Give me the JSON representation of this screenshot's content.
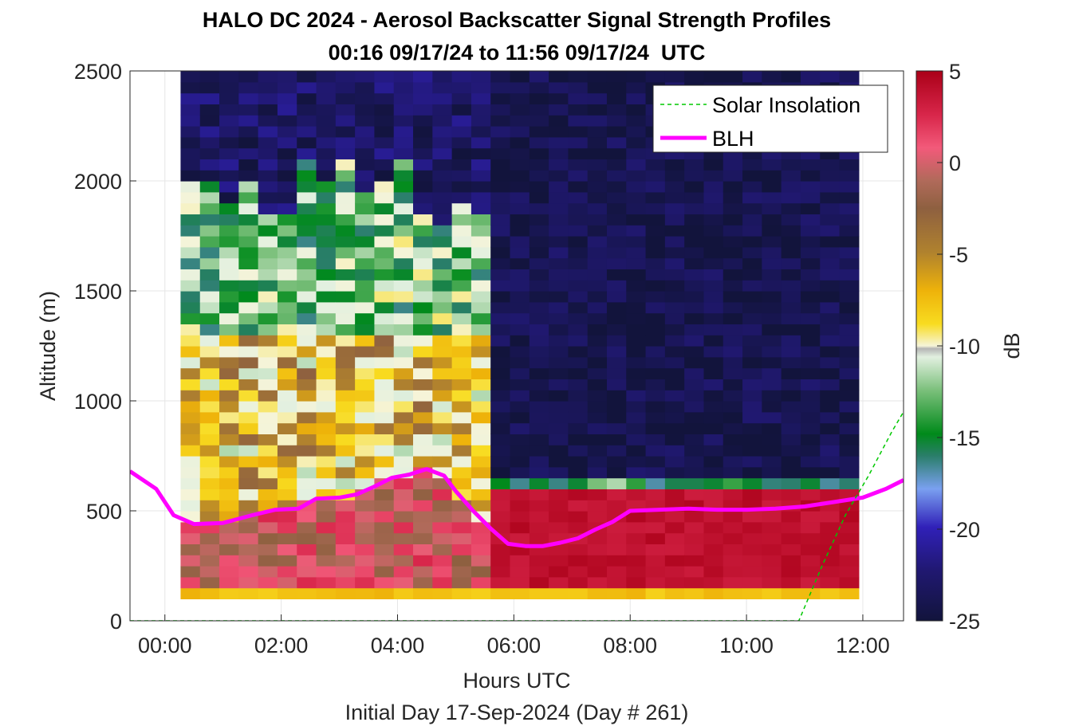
{
  "chart_data": {
    "type": "heatmap",
    "title": "HALO DC 2024 - Aerosol Backscatter Signal Strength Profiles",
    "subtitle": "00:16 09/17/24 to 11:56 09/17/24  UTC",
    "xlabel": "Hours UTC",
    "ylabel": "Altitude (m)",
    "footer": "Initial Day 17-Sep-2024 (Day # 261)",
    "xlim": [
      -0.6,
      12.7
    ],
    "ylim": [
      0,
      2500
    ],
    "x_ticks": [
      0,
      2,
      4,
      6,
      8,
      10,
      12
    ],
    "x_tick_labels": [
      "00:00",
      "02:00",
      "04:00",
      "06:00",
      "08:00",
      "10:00",
      "12:00"
    ],
    "y_ticks": [
      0,
      500,
      1000,
      1500,
      2000,
      2500
    ],
    "y_tick_labels": [
      "0",
      "500",
      "1000",
      "1500",
      "2000",
      "2500"
    ],
    "grid": true,
    "colorbar": {
      "label": "dB",
      "range": [
        -25,
        5
      ],
      "ticks": [
        5,
        0,
        -5,
        -10,
        -15,
        -20,
        -25
      ],
      "tick_labels": [
        "5",
        "0",
        "-5",
        "-10",
        "-15",
        "-20",
        "-25"
      ]
    },
    "heatmap_extent": {
      "x_start": 0.27,
      "x_end": 11.93,
      "bins_x": 35,
      "y_start": 100,
      "y_end": 2500,
      "bins_y": 48
    },
    "legend": {
      "position": "top-right",
      "entries": [
        {
          "name": "Solar Insolation",
          "style": "dashed",
          "color": "#00c800"
        },
        {
          "name": "BLH",
          "style": "solid",
          "color": "#ff00ff"
        }
      ]
    },
    "series": [
      {
        "name": "BLH",
        "x": [
          -0.6,
          -0.15,
          0.15,
          0.5,
          1.0,
          1.5,
          1.9,
          2.3,
          2.6,
          3.0,
          3.3,
          3.6,
          3.9,
          4.2,
          4.5,
          4.8,
          5.0,
          5.3,
          5.6,
          5.9,
          6.2,
          6.5,
          6.8,
          7.1,
          7.4,
          7.7,
          8.0,
          8.5,
          9.0,
          9.5,
          10.0,
          10.5,
          11.0,
          11.5,
          12.0,
          12.4,
          12.7
        ],
        "y": [
          680,
          600,
          480,
          440,
          445,
          480,
          505,
          510,
          555,
          560,
          575,
          610,
          650,
          665,
          690,
          660,
          590,
          500,
          420,
          350,
          340,
          340,
          355,
          375,
          415,
          450,
          500,
          505,
          510,
          505,
          505,
          510,
          520,
          540,
          560,
          600,
          640
        ]
      },
      {
        "name": "Solar Insolation",
        "x": [
          -0.6,
          10.9,
          11.3,
          11.7,
          12.1,
          12.5,
          12.7
        ],
        "y": [
          0,
          0,
          250,
          480,
          660,
          860,
          950
        ]
      }
    ]
  }
}
